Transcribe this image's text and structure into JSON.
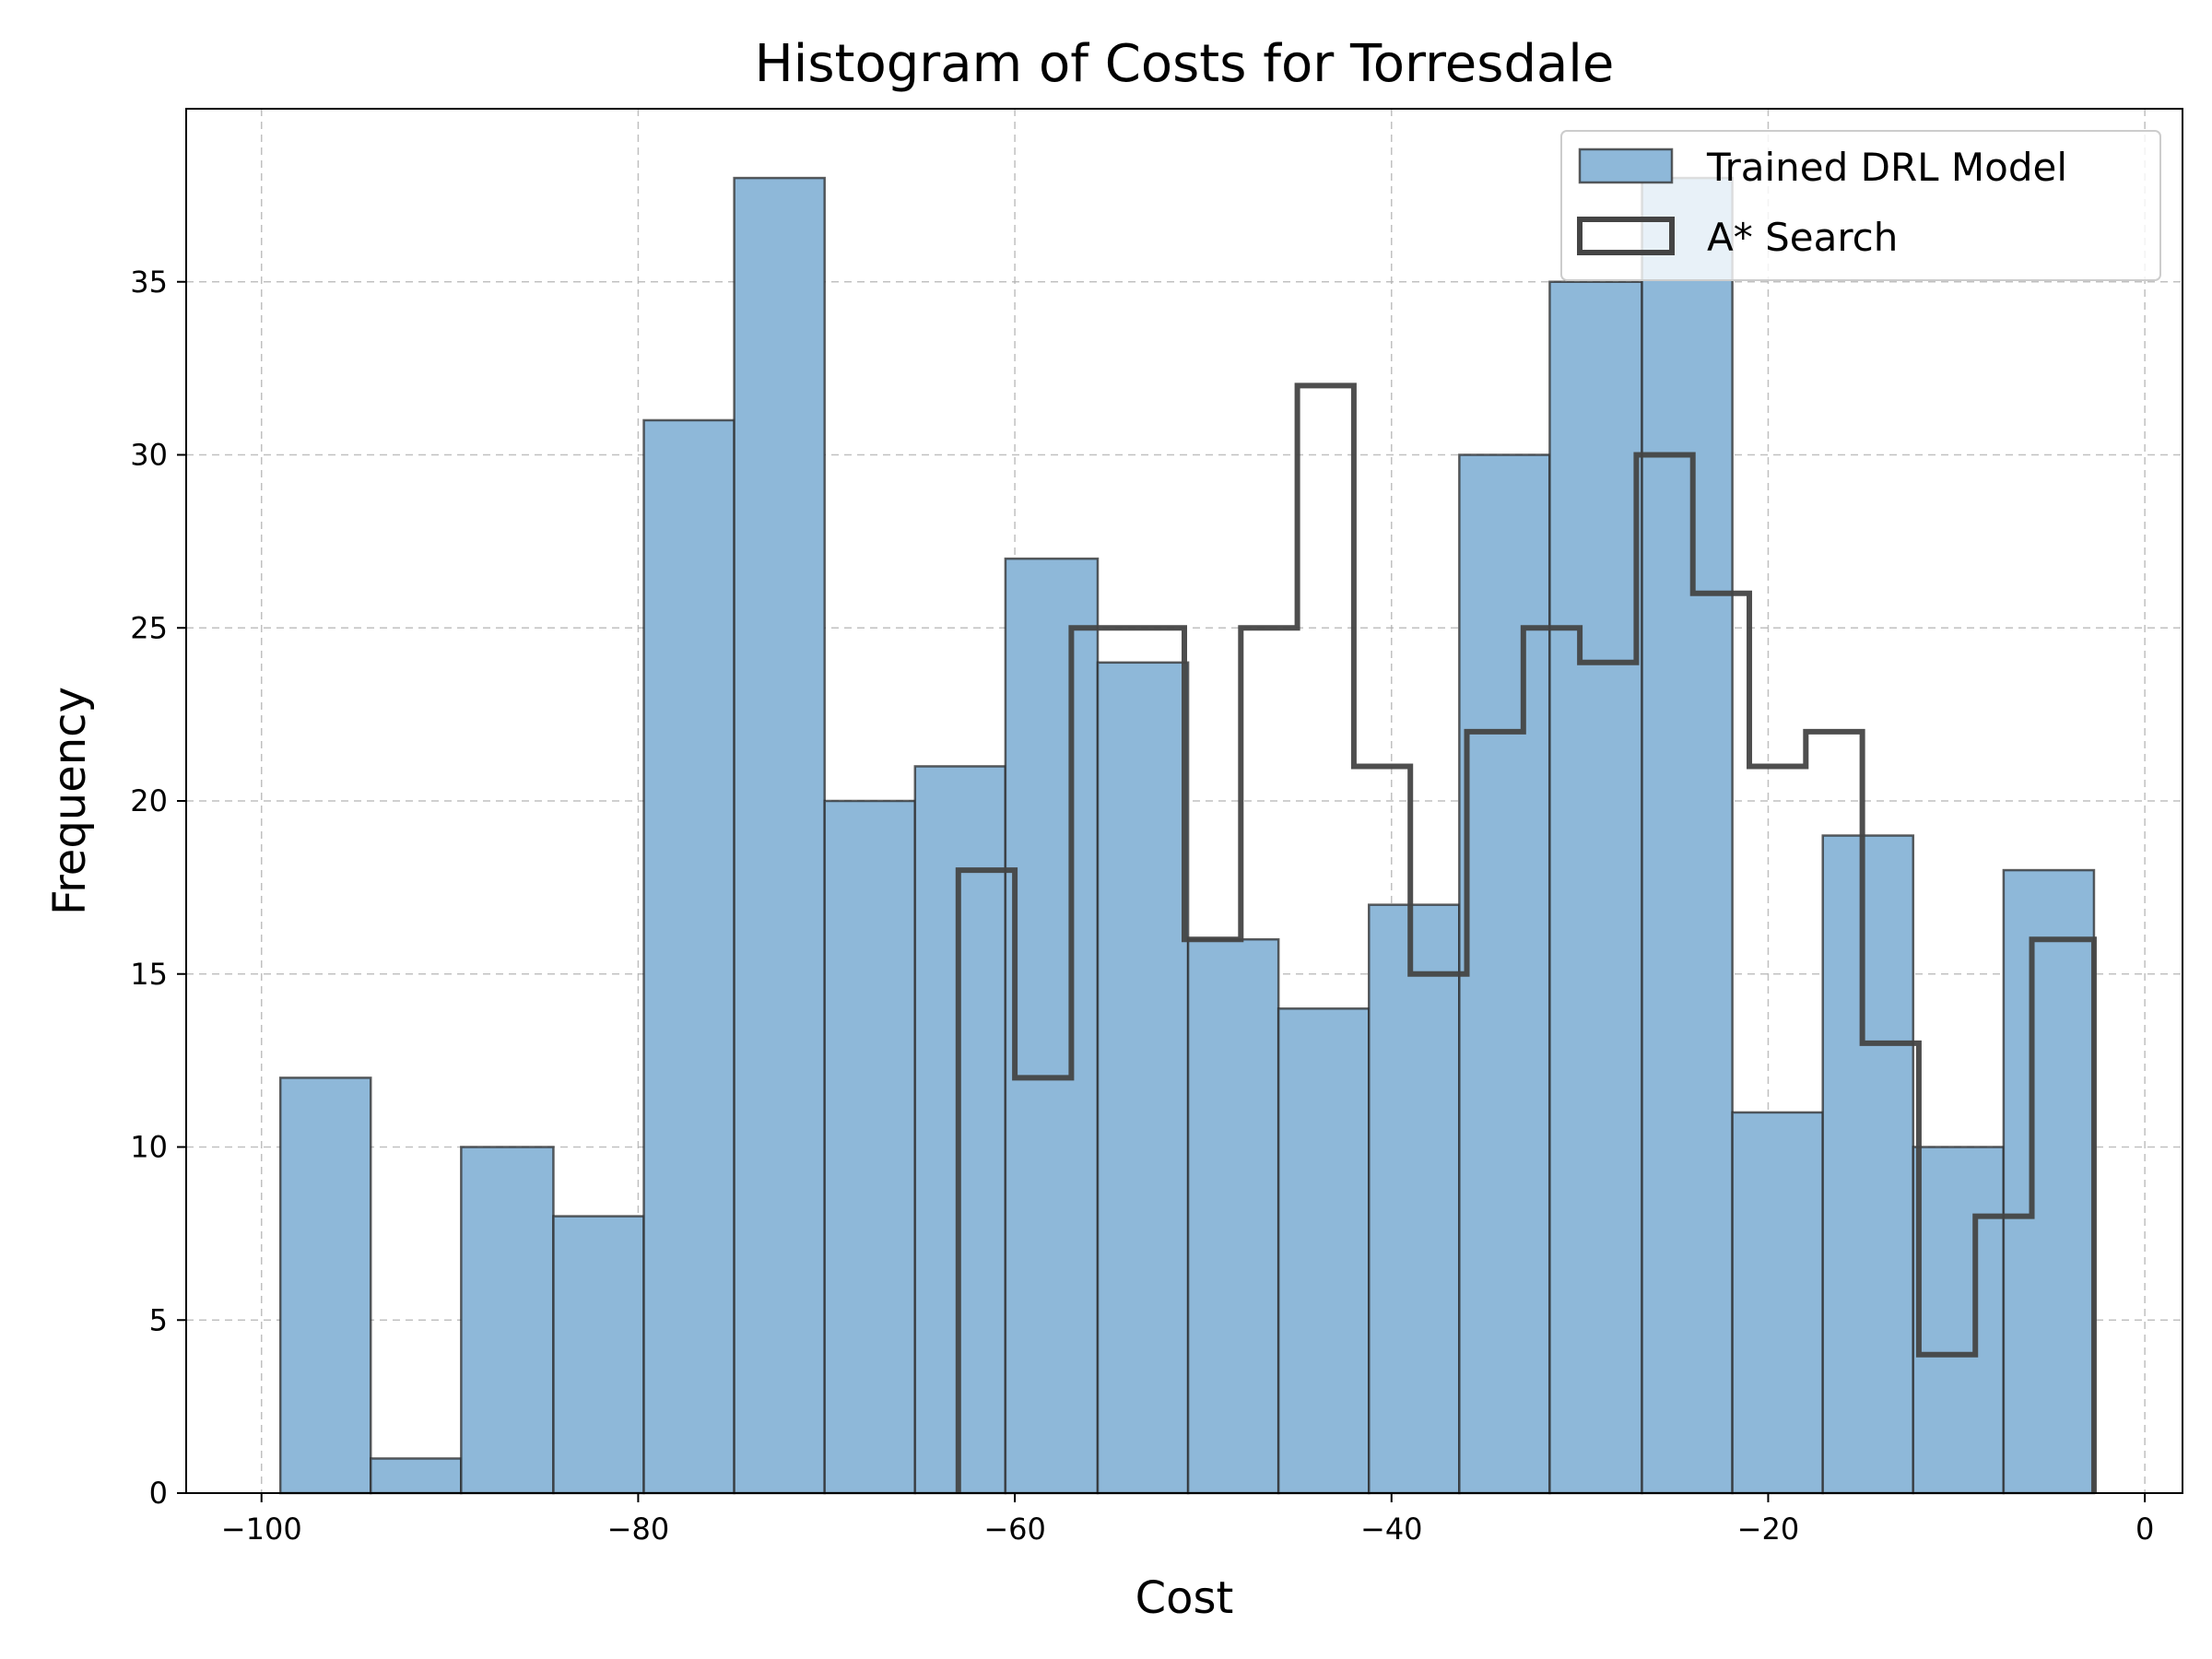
{
  "chart_data": {
    "type": "histogram",
    "title": "Histogram of Costs for Torresdale",
    "xlabel": "Cost",
    "ylabel": "Frequency",
    "xlim": [
      -104,
      2
    ],
    "ylim": [
      0,
      40
    ],
    "xticks": [
      -100,
      -80,
      -60,
      -40,
      -20,
      0
    ],
    "xtick_labels": [
      "−100",
      "−80",
      "−60",
      "−40",
      "−20",
      "0"
    ],
    "yticks": [
      0,
      5,
      10,
      15,
      20,
      25,
      30,
      35
    ],
    "ytick_labels": [
      "0",
      "5",
      "10",
      "15",
      "20",
      "25",
      "30",
      "35"
    ],
    "grid": true,
    "legend_position": "top-right",
    "series": [
      {
        "name": "Trained DRL Model",
        "style": "filled",
        "color": "#8eb8d9",
        "edge_color": "#2b2b2b",
        "bin_edges": [
          -99.0,
          -94.2,
          -89.4,
          -84.5,
          -79.7,
          -74.9,
          -70.1,
          -65.3,
          -60.5,
          -55.6,
          -50.8,
          -46.0,
          -41.2,
          -36.4,
          -31.6,
          -26.7,
          -21.9,
          -17.1,
          -12.3,
          -7.5,
          -2.7
        ],
        "counts": [
          12,
          1,
          10,
          8,
          31,
          38,
          20,
          21,
          27,
          24,
          16,
          14,
          17,
          30,
          35,
          38,
          11,
          19,
          10,
          18
        ]
      },
      {
        "name": "A* Search",
        "style": "step",
        "color": "#444444",
        "bin_edges": [
          -63.0,
          -60.0,
          -57.0,
          -54.0,
          -51.0,
          -48.0,
          -45.0,
          -42.0,
          -39.0,
          -36.0,
          -33.0,
          -30.0,
          -27.0,
          -24.0,
          -21.0,
          -18.0,
          -15.0,
          -12.0,
          -9.0,
          -6.0,
          -2.7
        ],
        "counts": [
          18,
          12,
          25,
          25,
          16,
          25,
          32,
          21,
          15,
          22,
          25,
          24,
          30,
          26,
          21,
          22,
          13,
          4,
          8,
          16
        ]
      }
    ]
  }
}
